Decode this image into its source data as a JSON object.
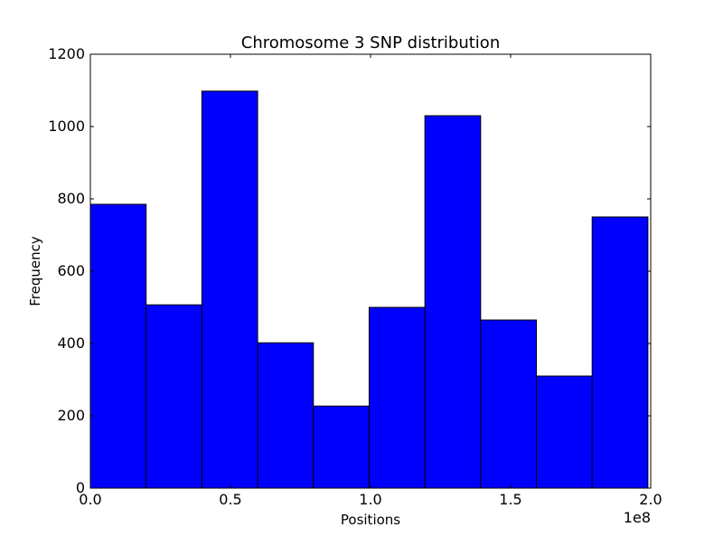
{
  "chart_data": {
    "type": "bar",
    "title": "Chromosome 3 SNP distribution",
    "xlabel": "Positions",
    "ylabel": "Frequency",
    "x_offset_text": "1e8",
    "xlim": [
      0.0,
      2.0
    ],
    "ylim": [
      0,
      1200
    ],
    "xticks": [
      0.0,
      0.5,
      1.0,
      1.5,
      2.0
    ],
    "xtick_labels": [
      "0.0",
      "0.5",
      "1.0",
      "1.5",
      "2.0"
    ],
    "yticks": [
      0,
      200,
      400,
      600,
      800,
      1000,
      1200
    ],
    "ytick_labels": [
      "0",
      "200",
      "400",
      "600",
      "800",
      "1000",
      "1200"
    ],
    "bins": [
      {
        "start": 0.0,
        "end": 0.199,
        "value": 785
      },
      {
        "start": 0.199,
        "end": 0.398,
        "value": 507
      },
      {
        "start": 0.398,
        "end": 0.597,
        "value": 1098
      },
      {
        "start": 0.597,
        "end": 0.796,
        "value": 402
      },
      {
        "start": 0.796,
        "end": 0.995,
        "value": 227
      },
      {
        "start": 0.995,
        "end": 1.194,
        "value": 500
      },
      {
        "start": 1.194,
        "end": 1.393,
        "value": 1030
      },
      {
        "start": 1.393,
        "end": 1.592,
        "value": 465
      },
      {
        "start": 1.592,
        "end": 1.791,
        "value": 310
      },
      {
        "start": 1.791,
        "end": 1.99,
        "value": 750
      }
    ],
    "bar_color": "#0000ff",
    "edge_color": "#000000",
    "grid": false
  }
}
